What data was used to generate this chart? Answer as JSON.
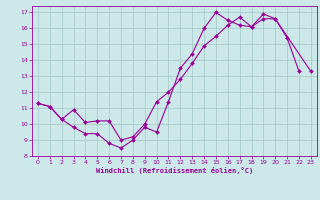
{
  "xlabel": "Windchill (Refroidissement éolien,°C)",
  "bg_color": "#cce8e8",
  "line_color": "#990099",
  "grid_color": "#aacccc",
  "xlim": [
    -0.5,
    23.5
  ],
  "ylim": [
    8,
    17.4
  ],
  "xticks": [
    0,
    1,
    2,
    3,
    4,
    5,
    6,
    7,
    8,
    9,
    10,
    11,
    12,
    13,
    14,
    15,
    16,
    17,
    18,
    19,
    20,
    21,
    22,
    23
  ],
  "yticks": [
    8,
    9,
    10,
    11,
    12,
    13,
    14,
    15,
    16,
    17
  ],
  "line1_x": [
    0,
    1,
    2,
    3,
    4,
    5,
    6,
    7,
    8,
    9,
    10,
    11,
    12,
    13,
    14,
    15,
    16,
    17,
    18,
    19,
    20,
    21,
    22
  ],
  "line1_y": [
    11.3,
    11.1,
    10.3,
    9.8,
    9.4,
    9.4,
    8.8,
    8.5,
    9.0,
    9.8,
    9.5,
    11.4,
    13.5,
    14.4,
    16.0,
    17.0,
    16.5,
    16.2,
    16.1,
    16.6,
    16.6,
    15.4,
    13.3
  ],
  "line2_x": [
    0,
    1,
    2,
    3,
    4,
    5,
    6,
    7,
    8,
    9,
    10,
    11,
    12,
    13,
    14,
    15,
    16,
    17,
    18,
    19,
    20,
    23
  ],
  "line2_y": [
    11.3,
    11.1,
    10.3,
    10.9,
    10.1,
    10.2,
    10.2,
    9.0,
    9.2,
    10.0,
    11.4,
    12.0,
    12.8,
    13.8,
    14.9,
    15.5,
    16.2,
    16.7,
    16.1,
    16.9,
    16.6,
    13.3
  ]
}
